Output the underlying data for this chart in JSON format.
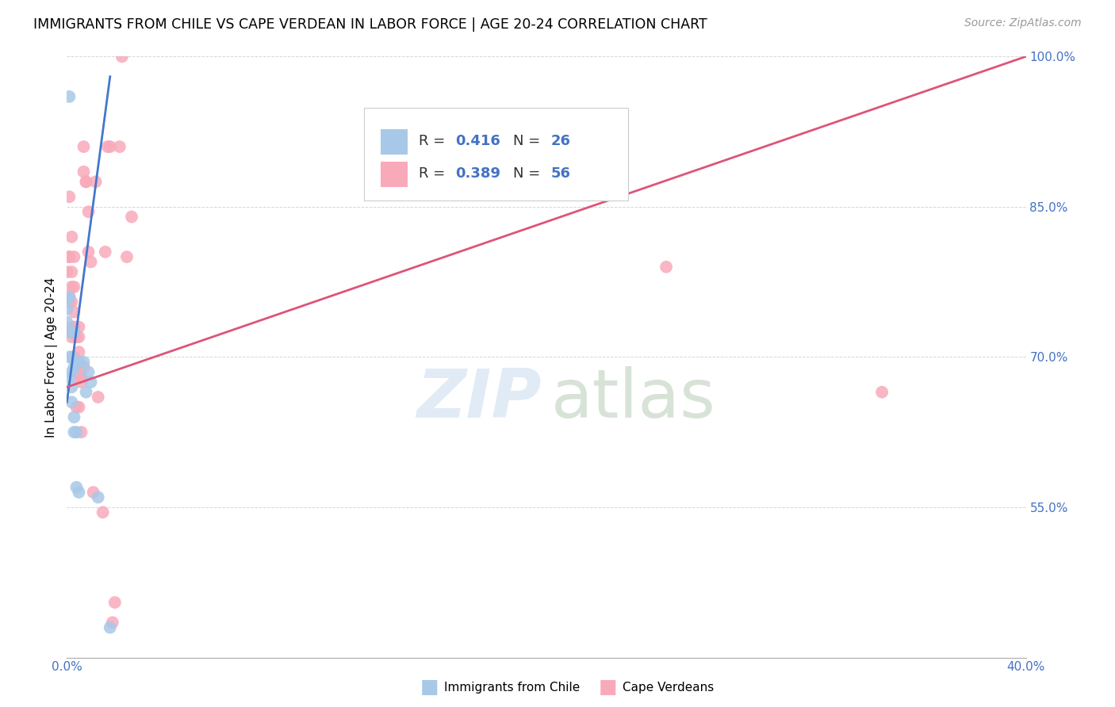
{
  "title": "IMMIGRANTS FROM CHILE VS CAPE VERDEAN IN LABOR FORCE | AGE 20-24 CORRELATION CHART",
  "source": "Source: ZipAtlas.com",
  "ylabel": "In Labor Force | Age 20-24",
  "xlim": [
    0.0,
    0.4
  ],
  "ylim": [
    0.4,
    1.0
  ],
  "chile_R": 0.416,
  "chile_N": 26,
  "cape_R": 0.389,
  "cape_N": 56,
  "chile_color": "#a8c8e8",
  "cape_color": "#f8aaba",
  "chile_line_color": "#4477cc",
  "cape_line_color": "#dd5577",
  "chile_x": [
    0.0,
    0.0,
    0.0,
    0.001,
    0.001,
    0.001,
    0.001,
    0.001,
    0.002,
    0.002,
    0.002,
    0.002,
    0.003,
    0.003,
    0.003,
    0.003,
    0.004,
    0.004,
    0.005,
    0.005,
    0.007,
    0.008,
    0.009,
    0.01,
    0.013,
    0.018
  ],
  "chile_y": [
    0.735,
    0.748,
    0.758,
    0.68,
    0.7,
    0.725,
    0.76,
    0.96,
    0.655,
    0.67,
    0.685,
    0.7,
    0.625,
    0.64,
    0.69,
    0.725,
    0.625,
    0.57,
    0.565,
    0.695,
    0.695,
    0.665,
    0.685,
    0.675,
    0.56,
    0.43
  ],
  "cape_x": [
    0.0,
    0.0,
    0.001,
    0.001,
    0.001,
    0.001,
    0.001,
    0.001,
    0.001,
    0.002,
    0.002,
    0.002,
    0.002,
    0.002,
    0.002,
    0.003,
    0.003,
    0.003,
    0.003,
    0.003,
    0.004,
    0.004,
    0.004,
    0.004,
    0.005,
    0.005,
    0.005,
    0.005,
    0.005,
    0.006,
    0.006,
    0.006,
    0.006,
    0.007,
    0.007,
    0.007,
    0.008,
    0.008,
    0.009,
    0.009,
    0.01,
    0.011,
    0.012,
    0.013,
    0.015,
    0.016,
    0.017,
    0.018,
    0.019,
    0.02,
    0.022,
    0.023,
    0.025,
    0.027,
    0.25,
    0.34
  ],
  "cape_y": [
    0.755,
    0.785,
    0.725,
    0.76,
    0.8,
    0.725,
    0.755,
    0.8,
    0.86,
    0.73,
    0.77,
    0.82,
    0.72,
    0.755,
    0.785,
    0.73,
    0.77,
    0.8,
    0.7,
    0.745,
    0.65,
    0.72,
    0.68,
    0.69,
    0.72,
    0.73,
    0.69,
    0.705,
    0.65,
    0.68,
    0.675,
    0.68,
    0.625,
    0.69,
    0.885,
    0.91,
    0.875,
    0.875,
    0.805,
    0.845,
    0.795,
    0.565,
    0.875,
    0.66,
    0.545,
    0.805,
    0.91,
    0.91,
    0.435,
    0.455,
    0.91,
    1.0,
    0.8,
    0.84,
    0.79,
    0.665
  ],
  "chile_trend_x": [
    0.0,
    0.018
  ],
  "chile_trend_y": [
    0.655,
    0.98
  ],
  "cape_trend_x": [
    0.0,
    0.4
  ],
  "cape_trend_y": [
    0.67,
    1.0
  ]
}
